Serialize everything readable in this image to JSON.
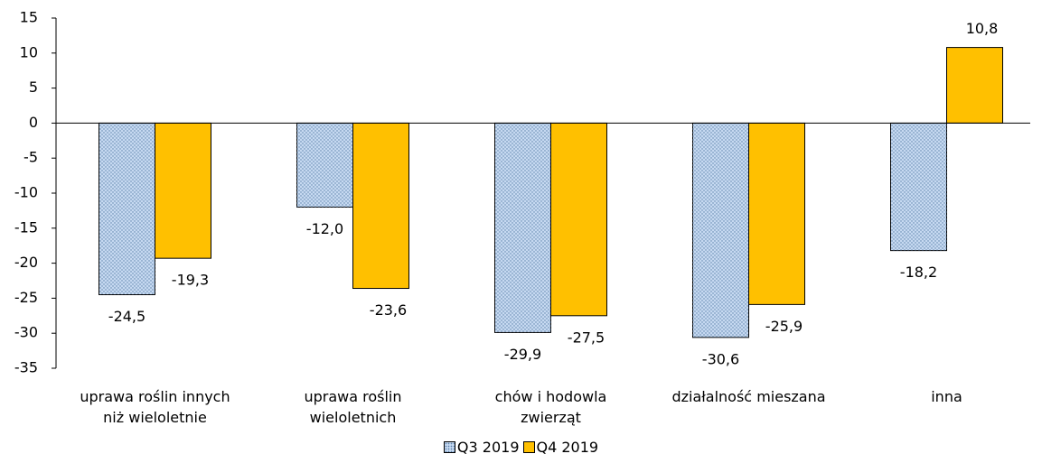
{
  "chart_data": {
    "type": "bar",
    "categories": [
      "uprawa roślin innych\nniż wieloletnie",
      "uprawa roślin\nwieloletnich",
      "chów i hodowla\nzwierząt",
      "działalność mieszana",
      "inna"
    ],
    "series": [
      {
        "name": "Q3 2019",
        "color": "#c6d9f1",
        "values": [
          -24.5,
          -12.0,
          -29.9,
          -30.6,
          -18.2
        ],
        "value_labels": [
          "-24,5",
          "-12,0",
          "-29,9",
          "-30,6",
          "-18,2"
        ]
      },
      {
        "name": "Q4 2019",
        "color": "#ffc000",
        "values": [
          -19.3,
          -23.6,
          -27.5,
          -25.9,
          10.8
        ],
        "value_labels": [
          "-19,3",
          "-23,6",
          "-27,5",
          "-25,9",
          "10,8"
        ]
      }
    ],
    "ylim": [
      -35,
      15
    ],
    "yticks": [
      -35,
      -30,
      -25,
      -20,
      -15,
      -10,
      -5,
      0,
      5,
      10,
      15
    ],
    "legend": "bottom"
  }
}
